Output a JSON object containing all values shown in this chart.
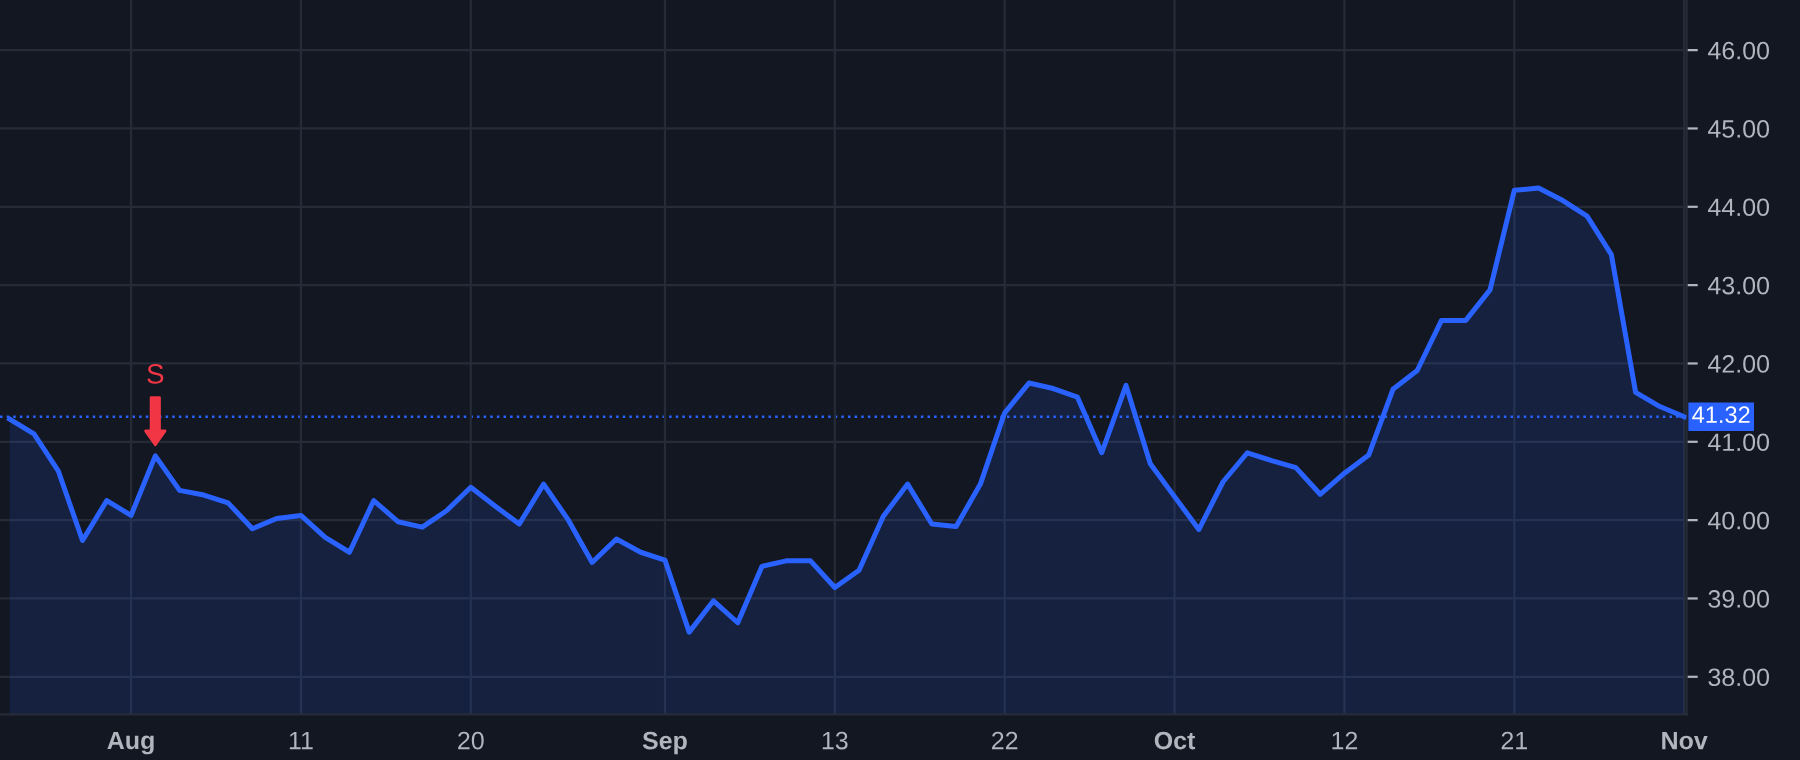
{
  "chart_data": {
    "type": "area",
    "categories": [
      null,
      null,
      null,
      null,
      null,
      "Aug",
      null,
      null,
      null,
      null,
      null,
      null,
      "11",
      null,
      null,
      null,
      null,
      null,
      null,
      "20",
      null,
      null,
      null,
      null,
      null,
      null,
      null,
      "Sep",
      null,
      null,
      null,
      null,
      null,
      null,
      "13",
      null,
      null,
      null,
      null,
      null,
      null,
      "22",
      null,
      null,
      null,
      null,
      null,
      null,
      "Oct",
      null,
      null,
      null,
      null,
      null,
      null,
      "12",
      null,
      null,
      null,
      null,
      null,
      null,
      "21",
      null,
      null,
      null,
      null,
      null,
      null,
      "Nov"
    ],
    "series": [
      {
        "color": "#2962ff",
        "values": [
          41.29,
          41.1,
          40.63,
          39.74,
          40.25,
          40.06,
          40.82,
          40.38,
          40.32,
          40.22,
          39.89,
          40.02,
          40.06,
          39.78,
          39.59,
          40.25,
          39.98,
          39.91,
          40.12,
          40.42,
          40.18,
          39.95,
          40.46,
          40.01,
          39.46,
          39.76,
          39.59,
          39.49,
          38.57,
          38.97,
          38.69,
          39.41,
          39.48,
          39.48,
          39.14,
          39.36,
          40.05,
          40.46,
          39.95,
          39.92,
          40.46,
          41.37,
          41.75,
          41.68,
          41.57,
          40.86,
          41.72,
          40.72,
          40.3,
          39.88,
          40.49,
          40.86,
          40.76,
          40.67,
          40.33,
          40.6,
          40.83,
          41.67,
          41.91,
          42.55,
          42.55,
          42.94,
          44.21,
          44.24,
          44.08,
          43.88,
          43.39,
          41.63,
          41.45,
          41.32
        ]
      }
    ],
    "ylim": [
      37.52,
      46.64
    ],
    "yticks": [
      {
        "value": 38,
        "label": "38.00"
      },
      {
        "value": 39,
        "label": "39.00"
      },
      {
        "value": 40,
        "label": "40.00"
      },
      {
        "value": 41,
        "label": "41.00"
      },
      {
        "value": 42,
        "label": "42.00"
      },
      {
        "value": 43,
        "label": "43.00"
      },
      {
        "value": 44,
        "label": "44.00"
      },
      {
        "value": 45,
        "label": "45.00"
      },
      {
        "value": 46,
        "label": "46.00"
      }
    ],
    "ref_lines": [
      {
        "axis": "y",
        "value": 41.32,
        "label": "41.32",
        "color": "#2962ff",
        "line_style": "dotted"
      }
    ],
    "annotations": [
      {
        "text": "S",
        "y": 40.82
      }
    ],
    "grid": true
  }
}
